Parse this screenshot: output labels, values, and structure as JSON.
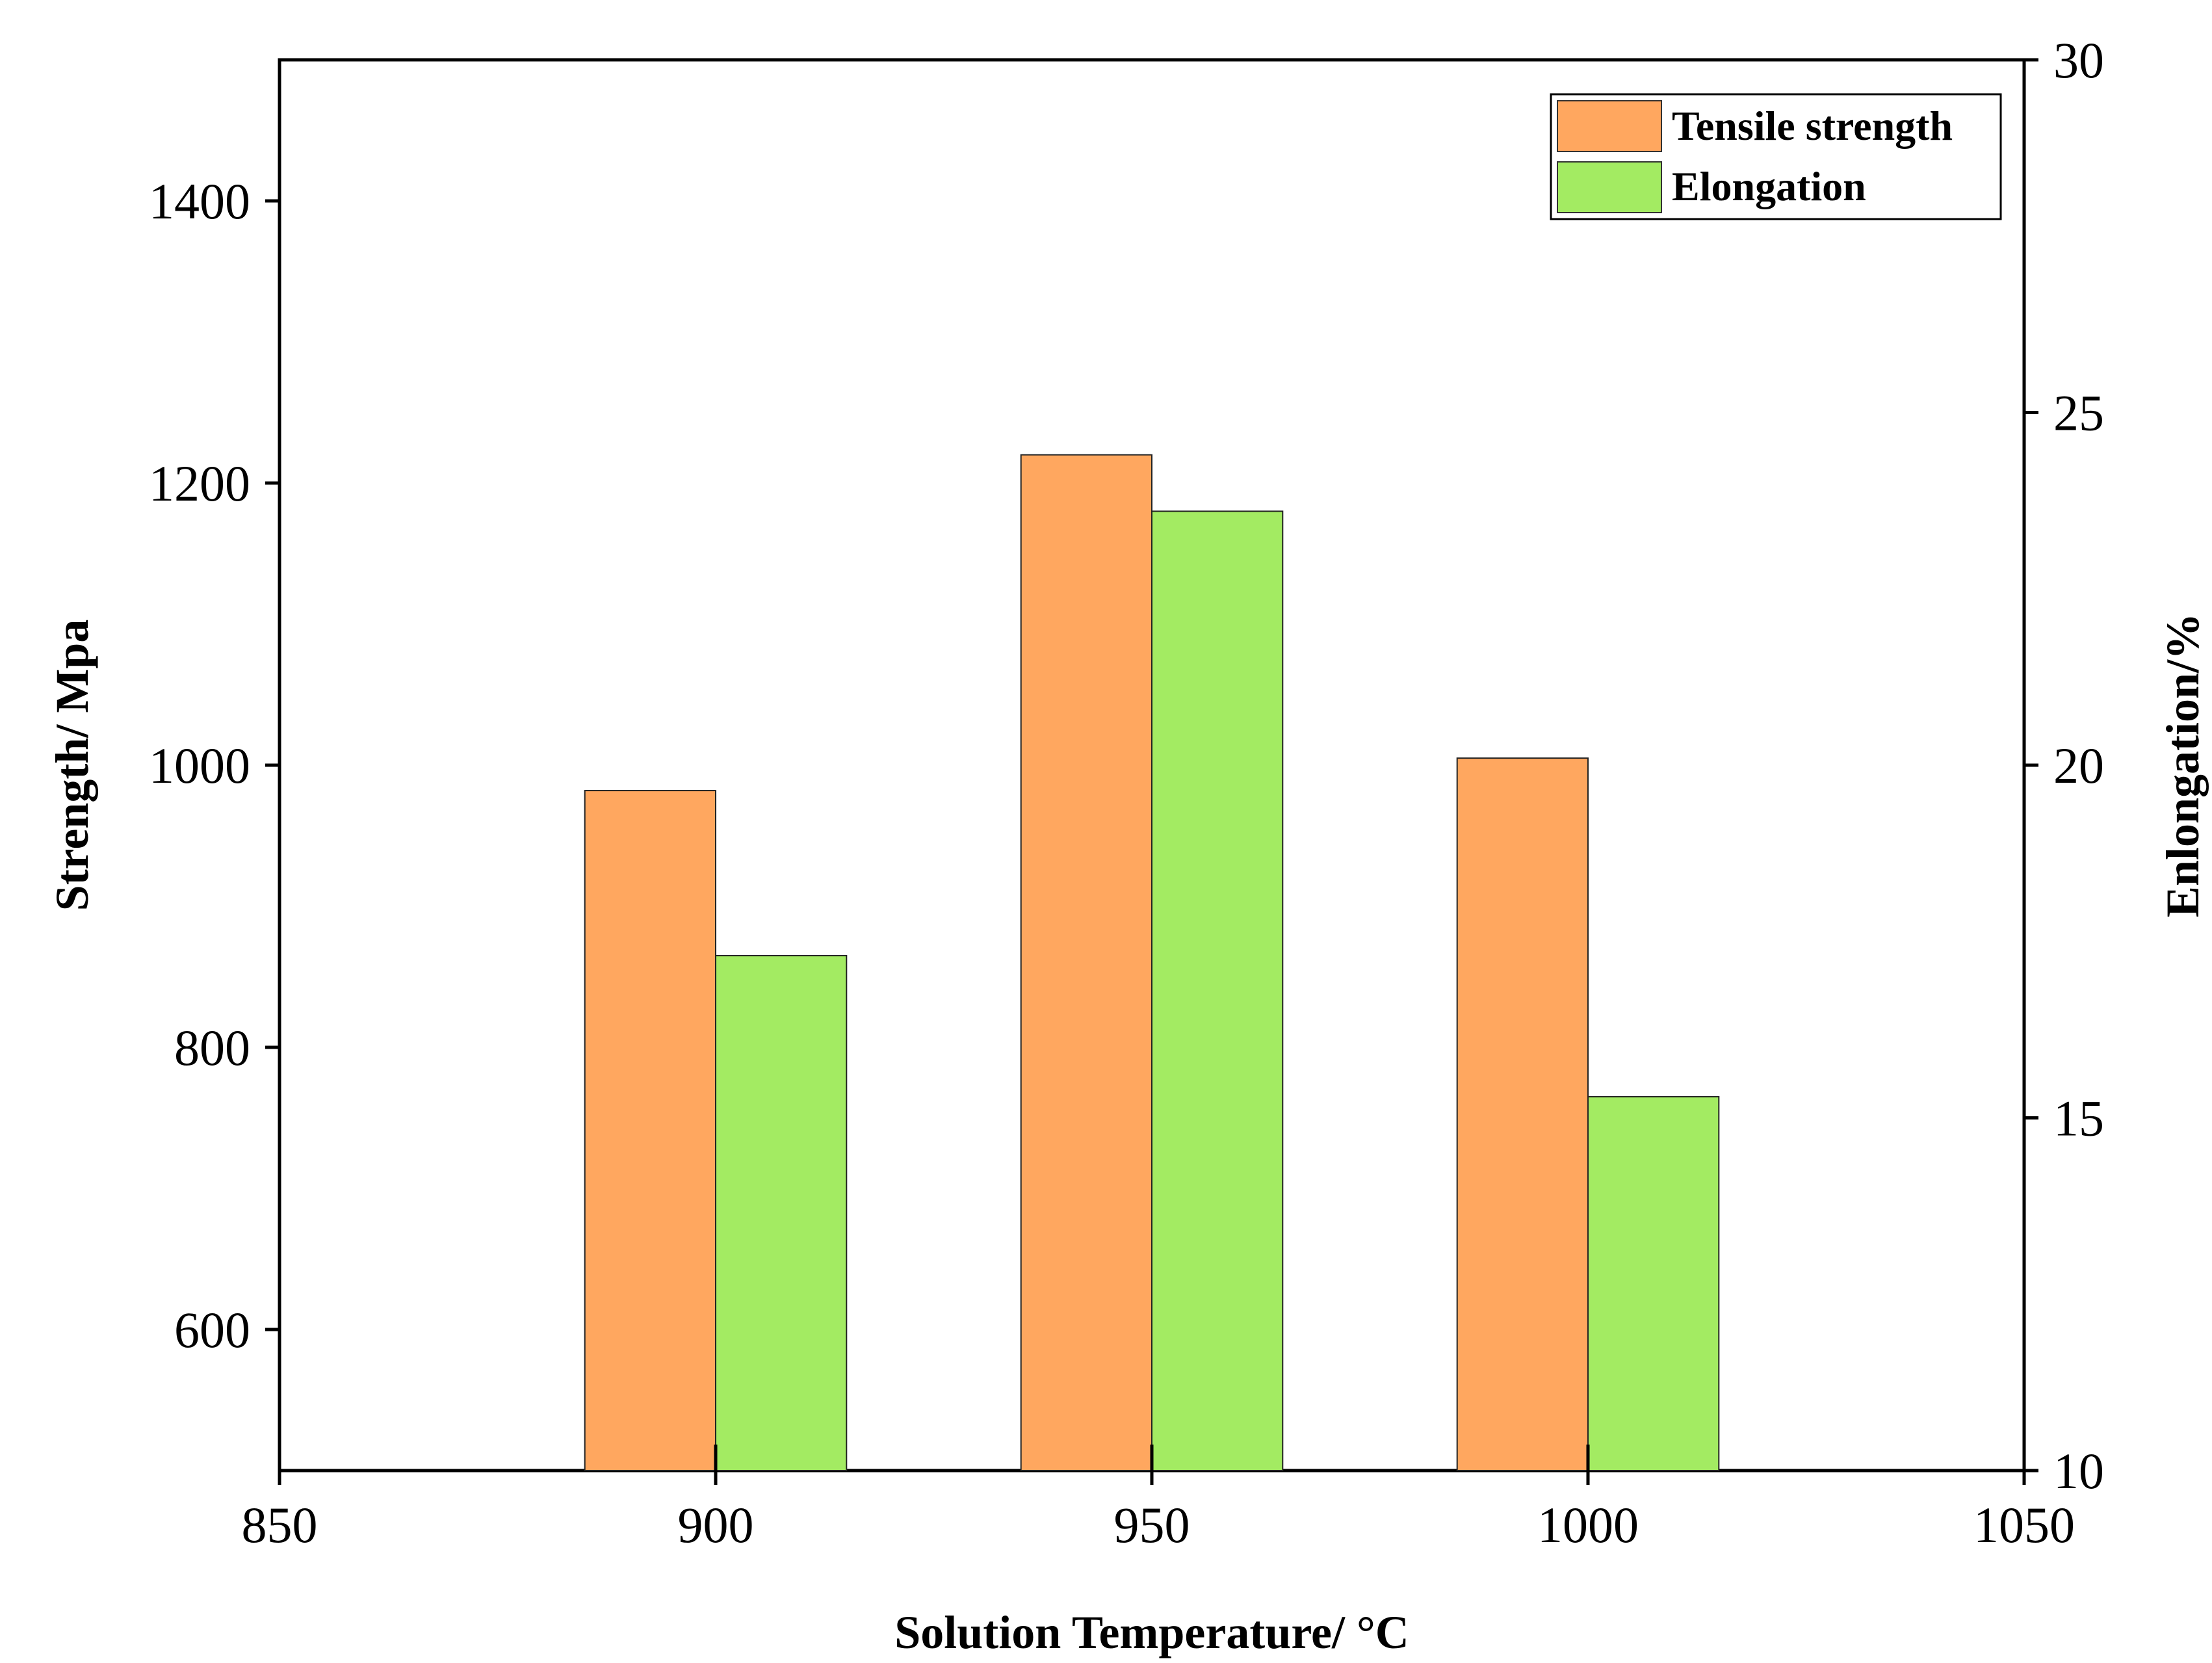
{
  "chart_data": {
    "type": "bar",
    "title": "",
    "xlabel": "Solution Temperature/ °C",
    "ylabel_left": "Strength/ Mpa",
    "ylabel_right": "Enlongation/%",
    "xlim": [
      850,
      1050
    ],
    "xticks": [
      "850",
      "900",
      "950",
      "1000",
      "1050"
    ],
    "xtick_values": [
      850,
      900,
      950,
      1000,
      1050
    ],
    "ylim_left": [
      500,
      1500
    ],
    "yticks_left": [
      "600",
      "800",
      "1000",
      "1200",
      "1400"
    ],
    "ytick_values_left": [
      600,
      800,
      1000,
      1200,
      1400
    ],
    "ylim_right": [
      10,
      30
    ],
    "yticks_right": [
      "10",
      "15",
      "20",
      "25",
      "30"
    ],
    "ytick_values_right": [
      10,
      15,
      20,
      25,
      30
    ],
    "categories": [
      900,
      950,
      1000
    ],
    "bar_width_units": 15,
    "series": [
      {
        "name": "Tensile strength",
        "axis": "left",
        "offset_units": -7.5,
        "color": "#FFA75F",
        "values": [
          982,
          1220,
          1005
        ]
      },
      {
        "name": "Elongation",
        "axis": "right",
        "offset_units": 7.5,
        "color": "#A3EB62",
        "values": [
          17.3,
          23.6,
          15.3
        ]
      }
    ],
    "legend": {
      "position": "top-right",
      "entries": [
        "Tensile strength",
        "Elongation"
      ]
    },
    "grid": false
  }
}
